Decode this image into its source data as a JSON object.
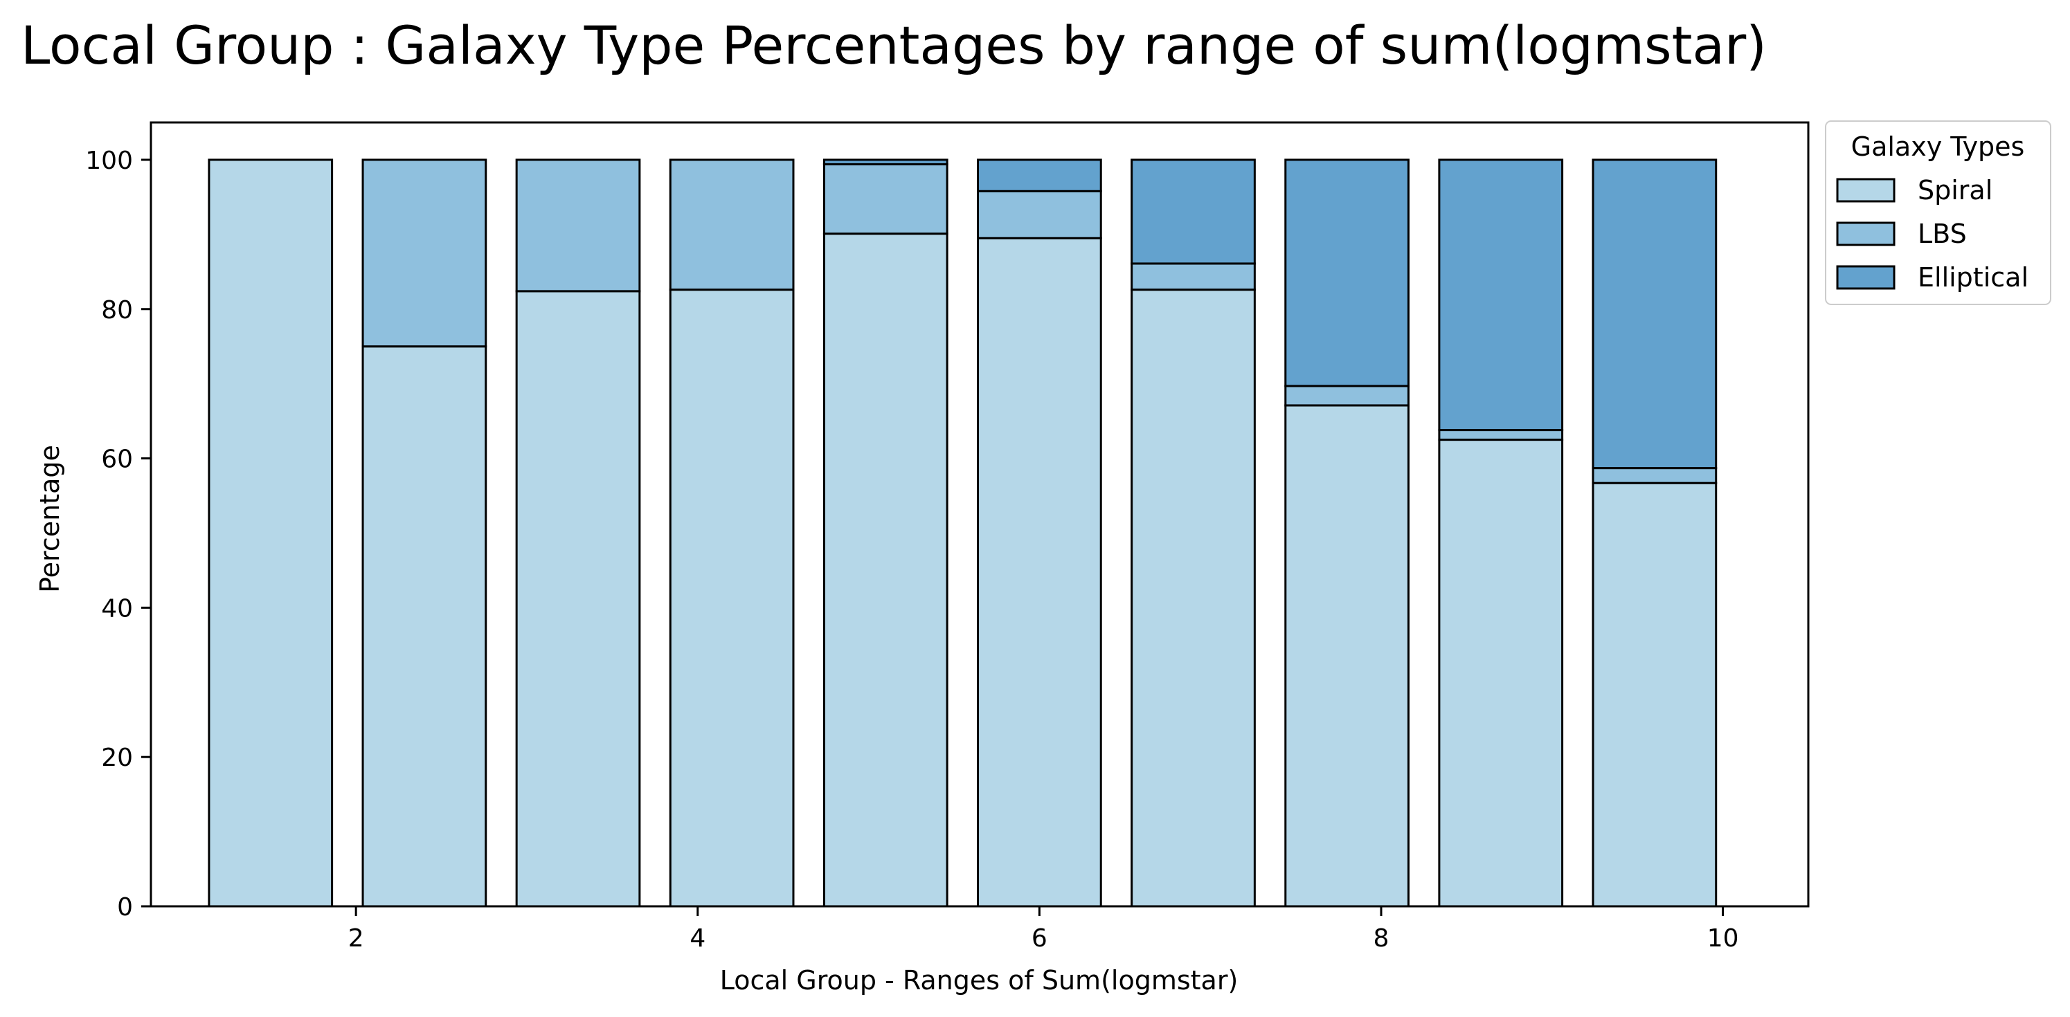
{
  "chart_data": {
    "type": "bar",
    "stacked": true,
    "title": "Local Group : Galaxy Type Percentages by range of sum(logmstar)",
    "xlabel": "Local Group - Ranges of Sum(logmstar)",
    "ylabel": "Percentage",
    "x": [
      1.5,
      2.4,
      3.3,
      4.2,
      5.1,
      6.0,
      6.9,
      7.8,
      8.7,
      9.6
    ],
    "xlim": [
      0.8,
      10.5
    ],
    "ylim": [
      0,
      105
    ],
    "xticks": [
      2,
      4,
      6,
      8,
      10
    ],
    "yticks": [
      0,
      20,
      40,
      60,
      80,
      100
    ],
    "grid": false,
    "legend": {
      "title": "Galaxy Types",
      "placement": "outside-top-right"
    },
    "series": [
      {
        "name": "Spiral",
        "color": "#b5d7e8",
        "values": [
          100,
          75.0,
          82.4,
          82.6,
          90.1,
          89.5,
          82.6,
          67.1,
          62.5,
          56.7
        ]
      },
      {
        "name": "LBS",
        "color": "#8fc0de",
        "values": [
          0,
          25.0,
          17.6,
          17.4,
          9.3,
          6.3,
          3.5,
          2.6,
          1.3,
          2.0
        ]
      },
      {
        "name": "Elliptical",
        "color": "#63a2ce",
        "values": [
          0,
          0,
          0,
          0,
          0.6,
          4.2,
          13.9,
          30.3,
          36.2,
          41.3
        ]
      }
    ]
  }
}
